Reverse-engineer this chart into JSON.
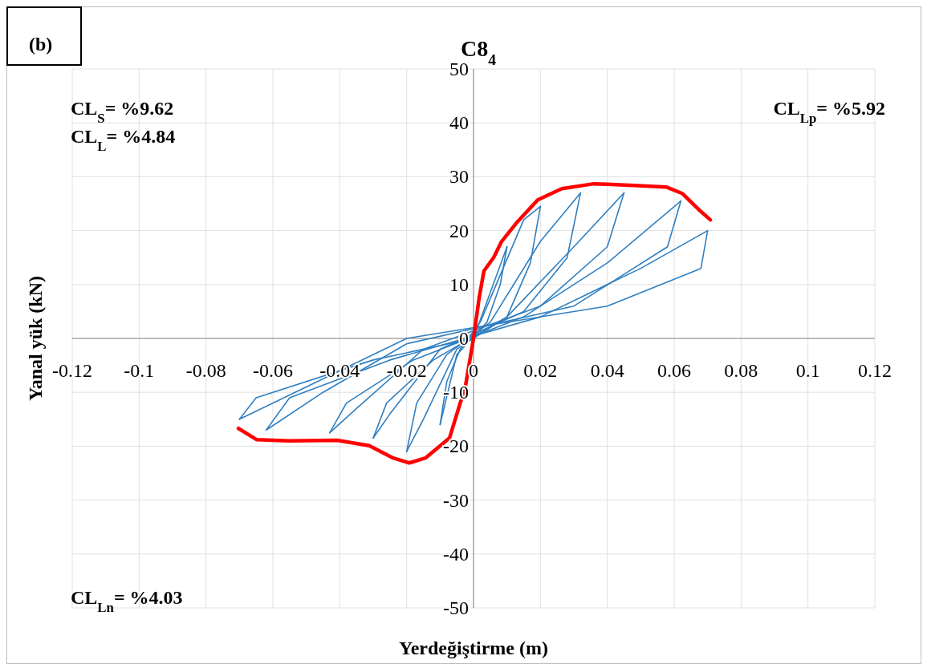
{
  "chart_data": {
    "type": "line",
    "title": "C8$_{4}$",
    "xlabel": "Yerdeğiştirme (m)",
    "ylabel": "Yanal yük (kN)",
    "xlim": [
      -0.12,
      0.12
    ],
    "xticks": [
      -0.12,
      -0.1,
      -0.08,
      -0.06,
      -0.04,
      -0.02,
      0,
      0.02,
      0.04,
      0.06,
      0.08,
      0.1,
      0.12
    ],
    "ylim": [
      -50,
      50
    ],
    "yticks": [
      -50,
      -40,
      -30,
      -20,
      -10,
      0,
      10,
      20,
      30,
      40,
      50
    ],
    "grid": true,
    "marker": "none",
    "line_style": "solid",
    "annotations": [
      "(b)",
      "CL$_{S}$= %9.62",
      "CL$_{L}$= %4.84",
      "CL$_{Lp}$= %5.92",
      "CL$_{Ln}$= %4.03"
    ],
    "series": [
      {
        "color": "#2f7fc1",
        "x": [
          0,
          0.01
        ],
        "values": [
          0,
          17
        ]
      },
      {
        "color": "#2f7fc1",
        "x": [
          0.01,
          0.008,
          0.004,
          -0.005,
          -0.01
        ],
        "values": [
          17,
          10,
          3,
          -3,
          -16
        ]
      },
      {
        "color": "#2f7fc1",
        "x": [
          -0.01,
          -0.008,
          -0.004,
          0.002,
          0.015,
          0.02
        ],
        "values": [
          -16,
          -8,
          -2,
          3,
          22,
          24.5
        ]
      },
      {
        "color": "#2f7fc1",
        "x": [
          0.02,
          0.017,
          0.01,
          -0.005,
          -0.015,
          -0.02
        ],
        "values": [
          24.5,
          14,
          4,
          -2,
          -15,
          -21
        ]
      },
      {
        "color": "#2f7fc1",
        "x": [
          -0.02,
          -0.017,
          -0.008,
          0.005,
          0.02,
          0.032
        ],
        "values": [
          -21,
          -12,
          -3,
          3,
          18,
          27
        ]
      },
      {
        "color": "#2f7fc1",
        "x": [
          0.032,
          0.028,
          0.015,
          -0.01,
          -0.025,
          -0.03
        ],
        "values": [
          27,
          15,
          5,
          -2,
          -14,
          -18.5
        ]
      },
      {
        "color": "#2f7fc1",
        "x": [
          -0.03,
          -0.026,
          -0.012,
          0.01,
          0.03,
          0.045
        ],
        "values": [
          -18.5,
          -12,
          -4,
          4,
          17,
          27
        ]
      },
      {
        "color": "#2f7fc1",
        "x": [
          0.045,
          0.04,
          0.02,
          -0.015,
          -0.035,
          -0.043
        ],
        "values": [
          27,
          17,
          6,
          -2,
          -13,
          -17.5
        ]
      },
      {
        "color": "#2f7fc1",
        "x": [
          -0.043,
          -0.038,
          -0.018,
          0.015,
          0.04,
          0.062
        ],
        "values": [
          -17.5,
          -12,
          -4,
          4,
          14,
          25.5
        ]
      },
      {
        "color": "#2f7fc1",
        "x": [
          0.062,
          0.058,
          0.03,
          -0.02,
          -0.045,
          -0.062
        ],
        "values": [
          25.5,
          17,
          6,
          -1,
          -10,
          -17
        ]
      },
      {
        "color": "#2f7fc1",
        "x": [
          -0.062,
          -0.055,
          -0.025,
          0.02,
          0.05,
          0.07
        ],
        "values": [
          -17,
          -11,
          -4,
          4,
          13,
          20
        ]
      },
      {
        "color": "#2f7fc1",
        "x": [
          0.07,
          0.068,
          0.04,
          -0.02,
          -0.05,
          -0.07
        ],
        "values": [
          20,
          13,
          6,
          0,
          -9,
          -15
        ]
      },
      {
        "color": "#2f7fc1",
        "x": [
          -0.07,
          -0.065,
          -0.03,
          0
        ],
        "values": [
          -15,
          -11,
          -4,
          0
        ]
      },
      {
        "color": "#ff0000",
        "x": [
          -0.0703,
          -0.0648,
          -0.0552,
          -0.0408,
          -0.0312,
          -0.024,
          -0.0192,
          -0.0144,
          -0.0072,
          -0.0024,
          0,
          0.0017,
          0.0031,
          0.006,
          0.0084,
          0.0132,
          0.0192,
          0.0264,
          0.036,
          0.048,
          0.0576,
          0.0624,
          0.0672,
          0.0708
        ],
        "values": [
          -16.7,
          -18.8,
          -19,
          -18.9,
          -19.9,
          -22.2,
          -23.1,
          -22.2,
          -18.5,
          -8.8,
          0,
          7.6,
          12.5,
          15,
          18,
          21.7,
          25.7,
          27.8,
          28.7,
          28.4,
          28.1,
          26.9,
          24,
          22
        ]
      }
    ]
  }
}
